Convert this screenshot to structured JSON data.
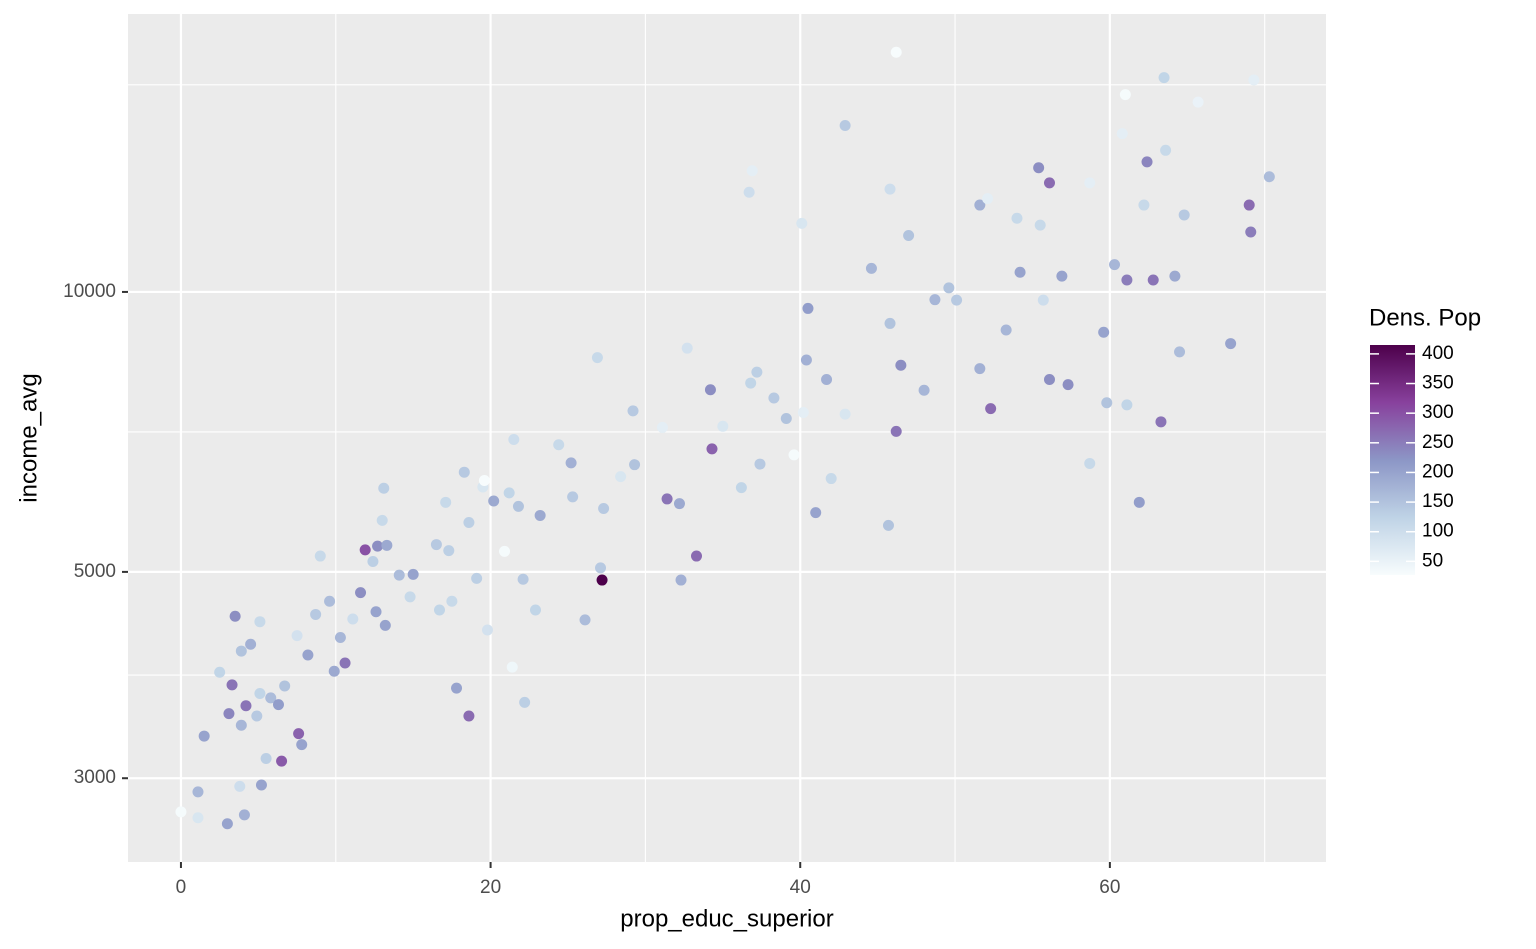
{
  "chart_data": {
    "type": "scatter",
    "xlabel": "prop_educ_superior",
    "ylabel": "income_avg",
    "legend_title": "Dens. Pop",
    "xlim": [
      -3.42,
      73.96
    ],
    "ylim": [
      2438,
      19900
    ],
    "y_log": true,
    "xticks": [
      0,
      20,
      40,
      60
    ],
    "yticks": [
      3000,
      5000,
      10000
    ],
    "x_minor_ticks": [
      10,
      30,
      50,
      70
    ],
    "y_minor_ticks": [
      3873,
      7071,
      16700
    ],
    "grid": true,
    "color_lim": [
      27,
      415
    ],
    "color_ticks": [
      50,
      100,
      150,
      200,
      250,
      300,
      350,
      400
    ],
    "colorscale": [
      "#f7fcfd",
      "#bfd3e6",
      "#8c96c6",
      "#88419d",
      "#4d004b"
    ],
    "x": [
      0,
      1.1,
      1.1,
      3,
      4.1,
      5.2,
      3.8,
      1.5,
      3.9,
      2.5,
      3.3,
      3.5,
      5.1,
      3.9,
      4.5,
      4.2,
      3.1,
      4.9,
      5.1,
      5.8,
      6.3,
      6.5,
      5.5,
      7.6,
      7.8,
      6.7,
      7.5,
      8.2,
      8.7,
      9.0,
      9.6,
      9.9,
      10.3,
      10.6,
      11.1,
      11.6,
      11.9,
      12.4,
      12.7,
      13.3,
      13.0,
      13.1,
      12.6,
      13.2,
      14.1,
      15.0,
      14.8,
      16.5,
      17.3,
      17.1,
      18.3,
      18.6,
      19.5,
      20.2,
      19.6,
      19.1,
      19.8,
      16.7,
      17.5,
      18.6,
      17.8,
      20.9,
      21.2,
      21.8,
      22.1,
      21.5,
      23.2,
      22.9,
      21.4,
      22.2,
      24.4,
      25.2,
      25.3,
      26.1,
      27.1,
      27.2,
      27.3,
      26.9,
      28.4,
      29.2,
      29.3,
      31.1,
      31.4,
      32.2,
      32.3,
      33.3,
      32.7,
      34.2,
      34.3,
      35.0,
      36.8,
      37.2,
      37.4,
      36.2,
      38.3,
      39.1,
      39.6,
      40.2,
      40.5,
      40.4,
      41.7,
      41.0,
      42.0,
      42.9,
      42.9,
      36.7,
      36.9,
      40.1,
      44.6,
      45.8,
      45.7,
      45.8,
      46.2,
      46.5,
      46.2,
      47.0,
      48.0,
      48.7,
      49.6,
      50.1,
      51.6,
      51.6,
      52.3,
      52.1,
      53.3,
      54.0,
      54.2,
      55.4,
      56.1,
      55.5,
      55.7,
      56.1,
      56.9,
      57.3,
      58.7,
      58.7,
      59.6,
      59.8,
      60.3,
      61.1,
      61.1,
      61.9,
      62.4,
      62.8,
      63.3,
      63.5,
      63.6,
      64.2,
      64.5,
      65.7,
      67.8,
      69.0,
      69.1,
      69.3,
      70.3,
      60.8,
      61.0,
      64.8,
      62.2
    ],
    "y": [
      2760,
      2900,
      2720,
      2680,
      2740,
      2950,
      2940,
      3330,
      3420,
      3900,
      3780,
      4480,
      4420,
      4110,
      4180,
      3590,
      3520,
      3500,
      3700,
      3660,
      3600,
      3130,
      3150,
      3350,
      3260,
      3770,
      4270,
      4070,
      4500,
      5200,
      4650,
      3910,
      4250,
      3990,
      4450,
      4750,
      5280,
      5130,
      5330,
      5340,
      5680,
      6150,
      4530,
      4380,
      4960,
      4970,
      4700,
      5350,
      5270,
      5940,
      6400,
      5650,
      6170,
      5960,
      6270,
      4920,
      4330,
      4550,
      4650,
      3500,
      3750,
      5260,
      6080,
      5880,
      4910,
      6940,
      5750,
      4550,
      3950,
      3620,
      6850,
      6550,
      6020,
      4440,
      5050,
      4900,
      5850,
      8500,
      6330,
      7450,
      6520,
      7150,
      5990,
      5920,
      4900,
      5200,
      8700,
      7850,
      6780,
      7170,
      7980,
      8200,
      6530,
      6160,
      7690,
      7310,
      6680,
      7420,
      9600,
      8450,
      8050,
      5790,
      6300,
      7390,
      15100,
      12800,
      13500,
      11850,
      10600,
      12900,
      5610,
      9250,
      7080,
      8340,
      18100,
      11500,
      7840,
      9810,
      10100,
      9800,
      8270,
      12400,
      7490,
      12600,
      9100,
      12000,
      10500,
      13600,
      13100,
      11800,
      9800,
      8050,
      10400,
      7950,
      6540,
      13100,
      9050,
      7600,
      10700,
      10300,
      7560,
      5940,
      13800,
      10300,
      7250,
      17000,
      14200,
      10400,
      8620,
      16000,
      8800,
      12400,
      11600,
      16900,
      13300,
      14800,
      16300,
      12100,
      12400
    ],
    "color_values": [
      30,
      170,
      80,
      200,
      180,
      200,
      100,
      200,
      170,
      120,
      260,
      230,
      110,
      150,
      180,
      260,
      240,
      140,
      120,
      160,
      210,
      290,
      130,
      280,
      200,
      150,
      90,
      200,
      140,
      110,
      160,
      190,
      170,
      260,
      100,
      230,
      300,
      130,
      230,
      190,
      110,
      130,
      200,
      200,
      160,
      200,
      110,
      140,
      130,
      110,
      140,
      130,
      80,
      190,
      20,
      130,
      90,
      120,
      110,
      270,
      200,
      30,
      120,
      150,
      140,
      100,
      190,
      120,
      40,
      130,
      110,
      180,
      140,
      160,
      140,
      420,
      140,
      110,
      80,
      140,
      150,
      60,
      260,
      190,
      180,
      270,
      90,
      230,
      280,
      80,
      120,
      130,
      140,
      120,
      140,
      150,
      30,
      60,
      210,
      180,
      180,
      200,
      110,
      80,
      140,
      100,
      60,
      80,
      170,
      100,
      150,
      150,
      260,
      230,
      20,
      150,
      170,
      170,
      150,
      140,
      180,
      180,
      270,
      60,
      170,
      110,
      200,
      230,
      270,
      110,
      100,
      230,
      200,
      230,
      110,
      60,
      200,
      150,
      170,
      250,
      120,
      210,
      240,
      260,
      260,
      120,
      110,
      190,
      160,
      50,
      200,
      270,
      250,
      60,
      160,
      60,
      30,
      140,
      110
    ]
  }
}
